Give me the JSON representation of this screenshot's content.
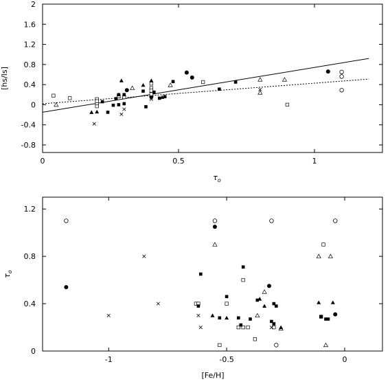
{
  "chart_data": [
    {
      "type": "scatter",
      "xlabel": "τ",
      "xlabel_sub": "o",
      "ylabel": "[hs/ls]",
      "xlim": [
        0,
        1.25
      ],
      "ylim": [
        -0.95,
        2.0
      ],
      "xticks": [
        0,
        0.5,
        1
      ],
      "xtick_labels": [
        "0",
        "0.5",
        "1"
      ],
      "yticks": [
        -0.8,
        -0.4,
        0,
        0.4,
        0.8,
        1.2,
        1.6,
        2.0
      ],
      "ytick_labels": [
        "-0.8",
        "-0.4",
        "0",
        "0.4",
        "0.8",
        "1.2",
        "1.6",
        "2"
      ],
      "fit_lines": [
        {
          "style": "solid",
          "x": [
            0,
            1.2
          ],
          "y": [
            -0.15,
            0.92
          ]
        },
        {
          "style": "dotted",
          "x": [
            0,
            1.2
          ],
          "y": [
            0.02,
            0.51
          ]
        }
      ],
      "series": [
        {
          "marker": "open-circle",
          "points": [
            [
              1.1,
              0.65
            ],
            [
              1.1,
              0.56
            ],
            [
              1.1,
              0.29
            ]
          ]
        },
        {
          "marker": "filled-circle",
          "points": [
            [
              0.31,
              0.29
            ],
            [
              0.4,
              0.16
            ],
            [
              0.53,
              0.64
            ],
            [
              0.55,
              0.54
            ],
            [
              1.05,
              0.66
            ]
          ]
        },
        {
          "marker": "open-square",
          "points": [
            [
              0.04,
              0.18
            ],
            [
              0.1,
              0.13
            ],
            [
              0.2,
              0.11
            ],
            [
              0.2,
              0.07
            ],
            [
              0.2,
              0.01
            ],
            [
              0.2,
              -0.03
            ],
            [
              0.28,
              0.17
            ],
            [
              0.3,
              0.15
            ],
            [
              0.4,
              0.42
            ],
            [
              0.4,
              0.33
            ],
            [
              0.4,
              0.28
            ],
            [
              0.4,
              0.21
            ],
            [
              0.59,
              0.45
            ],
            [
              0.9,
              0.0
            ]
          ]
        },
        {
          "marker": "filled-square",
          "points": [
            [
              0.22,
              0.06
            ],
            [
              0.24,
              -0.15
            ],
            [
              0.26,
              -0.01
            ],
            [
              0.27,
              0.12
            ],
            [
              0.28,
              0.2
            ],
            [
              0.28,
              0.0
            ],
            [
              0.3,
              0.02
            ],
            [
              0.3,
              0.2
            ],
            [
              0.37,
              0.27
            ],
            [
              0.38,
              -0.04
            ],
            [
              0.41,
              0.25
            ],
            [
              0.43,
              0.13
            ],
            [
              0.45,
              0.16
            ],
            [
              0.48,
              0.46
            ],
            [
              0.65,
              0.31
            ],
            [
              0.71,
              0.45
            ]
          ]
        },
        {
          "marker": "open-triangle",
          "points": [
            [
              0.05,
              0.0
            ],
            [
              0.33,
              0.33
            ],
            [
              0.47,
              0.39
            ],
            [
              0.8,
              0.5
            ],
            [
              0.8,
              0.24
            ],
            [
              0.89,
              0.5
            ]
          ]
        },
        {
          "marker": "filled-triangle",
          "points": [
            [
              0.18,
              -0.15
            ],
            [
              0.2,
              -0.14
            ],
            [
              0.29,
              0.48
            ],
            [
              0.37,
              0.39
            ],
            [
              0.4,
              0.48
            ],
            [
              0.44,
              0.15
            ]
          ]
        },
        {
          "marker": "cross",
          "points": [
            [
              0.19,
              -0.38
            ],
            [
              0.29,
              -0.19
            ],
            [
              0.3,
              -0.09
            ],
            [
              0.4,
              0.11
            ],
            [
              0.4,
              0.14
            ],
            [
              0.8,
              0.3
            ]
          ]
        }
      ]
    },
    {
      "type": "scatter",
      "xlabel": "[Fe/H]",
      "ylabel": "τ",
      "ylabel_sub": "o",
      "xlim": [
        -1.28,
        0.16
      ],
      "ylim": [
        0,
        1.3
      ],
      "xticks": [
        -1,
        -0.5,
        0
      ],
      "xtick_labels": [
        "-1",
        "-0.5",
        "0"
      ],
      "yticks": [
        0,
        0.4,
        0.8,
        1.2
      ],
      "ytick_labels": [
        "0",
        "0.4",
        "0.8",
        "1.2"
      ],
      "series": [
        {
          "marker": "open-circle",
          "points": [
            [
              -1.18,
              1.1
            ],
            [
              -0.55,
              1.1
            ],
            [
              -0.31,
              1.1
            ],
            [
              -0.04,
              1.1
            ],
            [
              -0.29,
              0.05
            ]
          ]
        },
        {
          "marker": "filled-circle",
          "points": [
            [
              -1.18,
              0.54
            ],
            [
              -0.55,
              1.05
            ],
            [
              -0.32,
              0.55
            ],
            [
              -0.04,
              0.31
            ]
          ]
        },
        {
          "marker": "open-square",
          "points": [
            [
              -0.09,
              0.9
            ],
            [
              -0.43,
              0.6
            ],
            [
              -0.63,
              0.4
            ],
            [
              -0.62,
              0.4
            ],
            [
              -0.5,
              0.4
            ],
            [
              -0.43,
              0.2
            ],
            [
              -0.45,
              0.2
            ],
            [
              -0.41,
              0.2
            ],
            [
              -0.53,
              0.05
            ],
            [
              -0.38,
              0.1
            ],
            [
              -0.1,
              0.29
            ],
            [
              -0.3,
              0.2
            ]
          ]
        },
        {
          "marker": "filled-square",
          "points": [
            [
              -0.61,
              0.65
            ],
            [
              -0.43,
              0.71
            ],
            [
              -0.5,
              0.46
            ],
            [
              -0.62,
              0.38
            ],
            [
              -0.53,
              0.28
            ],
            [
              -0.45,
              0.28
            ],
            [
              -0.4,
              0.27
            ],
            [
              -0.44,
              0.22
            ],
            [
              -0.37,
              0.43
            ],
            [
              -0.3,
              0.4
            ],
            [
              -0.29,
              0.38
            ],
            [
              -0.31,
              0.25
            ],
            [
              -0.3,
              0.23
            ],
            [
              -0.1,
              0.29
            ],
            [
              -0.08,
              0.27
            ],
            [
              -0.07,
              0.27
            ]
          ]
        },
        {
          "marker": "open-triangle",
          "points": [
            [
              -0.55,
              0.9
            ],
            [
              -0.11,
              0.8
            ],
            [
              -0.06,
              0.8
            ],
            [
              -0.34,
              0.5
            ],
            [
              -0.37,
              0.3
            ],
            [
              -0.27,
              0.19
            ],
            [
              -0.08,
              0.05
            ]
          ]
        },
        {
          "marker": "filled-triangle",
          "points": [
            [
              -0.56,
              0.3
            ],
            [
              -0.5,
              0.28
            ],
            [
              -0.36,
              0.44
            ],
            [
              -0.34,
              0.38
            ],
            [
              -0.11,
              0.41
            ],
            [
              -0.05,
              0.41
            ],
            [
              -0.27,
              0.2
            ]
          ]
        },
        {
          "marker": "cross",
          "points": [
            [
              -1.0,
              0.3
            ],
            [
              -0.85,
              0.8
            ],
            [
              -0.79,
              0.4
            ],
            [
              -0.62,
              0.3
            ],
            [
              -0.61,
              0.2
            ],
            [
              -0.31,
              0.2
            ]
          ]
        }
      ]
    }
  ]
}
